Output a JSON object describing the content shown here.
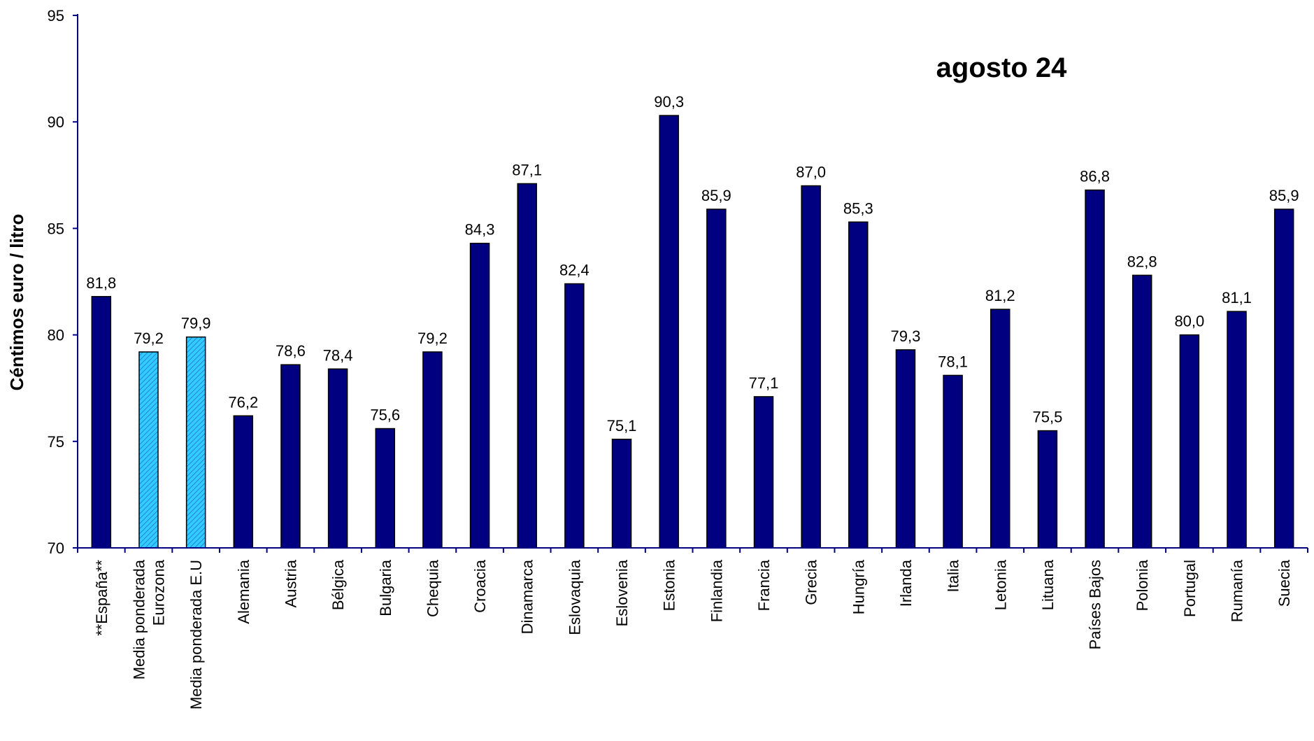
{
  "chart_data": {
    "type": "bar",
    "title": "agosto 24",
    "ylabel": "Céntimos euro / litro",
    "xlabel": "",
    "ylim": [
      70,
      95
    ],
    "yticks": [
      70,
      75,
      80,
      85,
      90,
      95
    ],
    "grid": false,
    "legend": "none",
    "colors": {
      "bar": "#000080",
      "highlight": "#33ccff",
      "axis": "#000080"
    },
    "categories": [
      "**España**",
      "Media ponderada Eurozona",
      "Media ponderada E.U",
      "Alemania",
      "Austria",
      "Bélgica",
      "Bulgaria",
      "Chequia",
      "Croacia",
      "Dinamarca",
      "Eslovaquia",
      "Eslovenia",
      "Estonia",
      "Finlandia",
      "Francia",
      "Grecia",
      "Hungría",
      "Irlanda",
      "Italia",
      "Letonia",
      "Lituana",
      "Países Bajos",
      "Polonia",
      "Portugal",
      "Rumanía",
      "Suecia"
    ],
    "category_lines": [
      [
        "**España**"
      ],
      [
        "Media ponderada",
        "Eurozona"
      ],
      [
        "Media ponderada E.U"
      ],
      [
        "Alemania"
      ],
      [
        "Austria"
      ],
      [
        "Bélgica"
      ],
      [
        "Bulgaria"
      ],
      [
        "Chequia"
      ],
      [
        "Croacia"
      ],
      [
        "Dinamarca"
      ],
      [
        "Eslovaquia"
      ],
      [
        "Eslovenia"
      ],
      [
        "Estonia"
      ],
      [
        "Finlandia"
      ],
      [
        "Francia"
      ],
      [
        "Grecia"
      ],
      [
        "Hungría"
      ],
      [
        "Irlanda"
      ],
      [
        "Italia"
      ],
      [
        "Letonia"
      ],
      [
        "Lituana"
      ],
      [
        "Países Bajos"
      ],
      [
        "Polonia"
      ],
      [
        "Portugal"
      ],
      [
        "Rumanía"
      ],
      [
        "Suecia"
      ]
    ],
    "values": [
      81.8,
      79.2,
      79.9,
      76.2,
      78.6,
      78.4,
      75.6,
      79.2,
      84.3,
      87.1,
      82.4,
      75.1,
      90.3,
      85.9,
      77.1,
      87.0,
      85.3,
      79.3,
      78.1,
      81.2,
      75.5,
      86.8,
      82.8,
      80.0,
      81.1,
      85.9
    ],
    "value_labels": [
      "81,8",
      "79,2",
      "79,9",
      "76,2",
      "78,6",
      "78,4",
      "75,6",
      "79,2",
      "84,3",
      "87,1",
      "82,4",
      "75,1",
      "90,3",
      "85,9",
      "77,1",
      "87,0",
      "85,3",
      "79,3",
      "78,1",
      "81,2",
      "75,5",
      "86,8",
      "82,8",
      "80,0",
      "81,1",
      "85,9"
    ],
    "highlighted": [
      false,
      true,
      true,
      false,
      false,
      false,
      false,
      false,
      false,
      false,
      false,
      false,
      false,
      false,
      false,
      false,
      false,
      false,
      false,
      false,
      false,
      false,
      false,
      false,
      false,
      false
    ]
  }
}
